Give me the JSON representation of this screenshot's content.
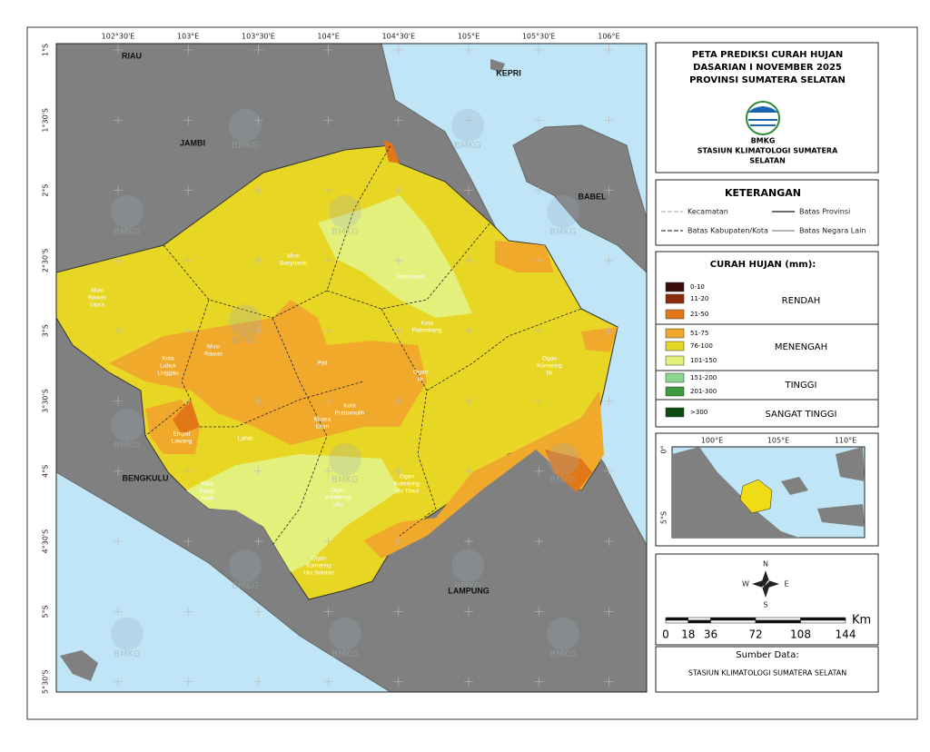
{
  "map": {
    "x_ticks": [
      "102°30'E",
      "103°E",
      "103°30'E",
      "104°E",
      "104°30'E",
      "105°E",
      "105°30'E",
      "106°E"
    ],
    "y_ticks": [
      "1°S",
      "1°30'S",
      "2°S",
      "2°30'S",
      "3°S",
      "3°30'S",
      "4°S",
      "4°30'S",
      "5°S",
      "5°30'S"
    ],
    "region_labels": [
      "RIAU",
      "JAMBI",
      "KEPRI",
      "BABEL",
      "BENGKULU",
      "LAMPUNG"
    ],
    "district_labels": [
      [
        "Musi",
        "Banyuasin"
      ],
      [
        "Banyuasin"
      ],
      [
        "Musi",
        "Rawas",
        "Utara"
      ],
      [
        "Musi",
        "Rawas"
      ],
      [
        "Kota",
        "Lubuk",
        "Linggau"
      ],
      [
        "Kota",
        "Palembang"
      ],
      [
        "Pali"
      ],
      [
        "Ogan",
        "Ilir"
      ],
      [
        "Ogan",
        "Komering",
        "Ilir"
      ],
      [
        "Kota",
        "Prabumulih"
      ],
      [
        "Muara",
        "Enim"
      ],
      [
        "Empat",
        "Lawang"
      ],
      [
        "Lahat"
      ],
      [
        "Kota",
        "Pagar",
        "Alam"
      ],
      [
        "Ogan",
        "Komering",
        "Ulu"
      ],
      [
        "Ogan",
        "Komering",
        "Ulu Timur"
      ],
      [
        "Ogan",
        "Komering",
        "Ulu Selatan"
      ]
    ],
    "watermark": "BMKG"
  },
  "header": {
    "title": [
      "PETA PREDIKSI CURAH HUJAN",
      "DASARIAN I NOVEMBER 2025",
      "PROVINSI SUMATERA SELATAN"
    ],
    "logo": "BMKG",
    "station": [
      "STASIUN KLIMATOLOGI SUMATERA",
      "SELATAN"
    ]
  },
  "keterangan": {
    "title": "KETERANGAN",
    "items": [
      "Kecamatan",
      "Batas Provinsi",
      "Batas Kabupaten/Kota",
      "Batas Negara Lain"
    ]
  },
  "legend": {
    "title": "CURAH HUJAN (mm):",
    "classes": [
      {
        "label": "0-10",
        "color": "#3a0c0c"
      },
      {
        "label": "11-20",
        "color": "#8a2c0c"
      },
      {
        "label": "21-50",
        "color": "#e27718"
      },
      {
        "label": "51-75",
        "color": "#f0a92a"
      },
      {
        "label": "76-100",
        "color": "#e8d624"
      },
      {
        "label": "101-150",
        "color": "#e4f07c"
      },
      {
        "label": "151-200",
        "color": "#8fd48f"
      },
      {
        "label": "201-300",
        "color": "#3d9a3d"
      },
      {
        "label": ">300",
        "color": "#0b4a10"
      }
    ],
    "groups": [
      "RENDAH",
      "MENENGAH",
      "TINGGI",
      "SANGAT TINGGI"
    ]
  },
  "inset": {
    "x_ticks": [
      "100°E",
      "105°E",
      "110°E"
    ],
    "y_ticks": [
      "0°",
      "5°S"
    ]
  },
  "compass": [
    "N",
    "W",
    "E",
    "S"
  ],
  "scale": {
    "unit": "Km",
    "ticks": [
      0,
      18,
      36,
      72,
      108,
      144
    ]
  },
  "source": {
    "title": "Sumber Data:",
    "text": "STASIUN KLIMATOLOGI SUMATERA SELATAN"
  }
}
